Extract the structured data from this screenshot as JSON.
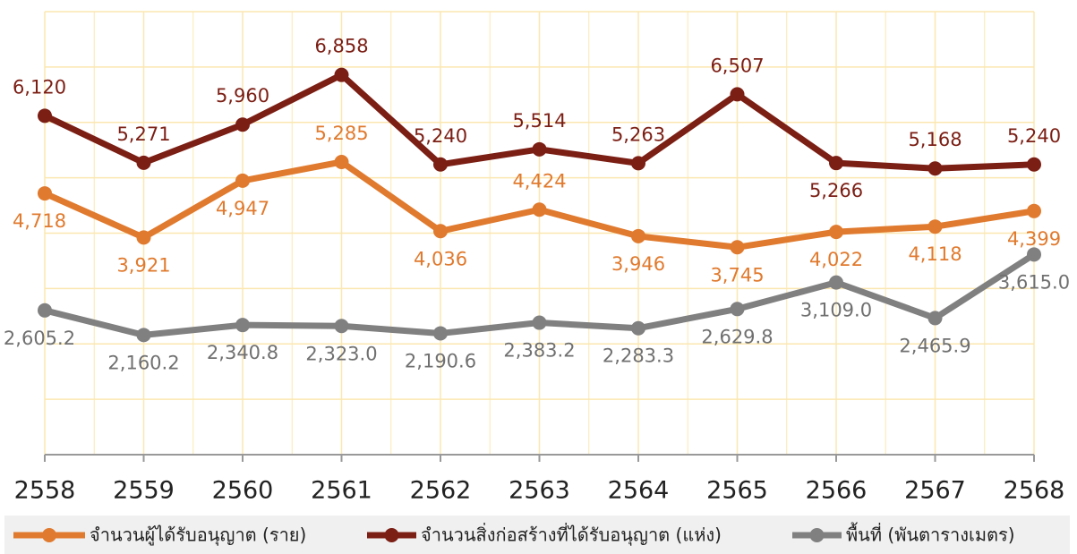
{
  "chart_data": {
    "type": "line",
    "categories": [
      "2558",
      "2559",
      "2560",
      "2561",
      "2562",
      "2563",
      "2564",
      "2565",
      "2566",
      "2567",
      "2568"
    ],
    "series": [
      {
        "name": "จำนวนผู้ได้รับอนุญาต (ราย)",
        "color": "#e07a2e",
        "values": [
          4718,
          3921,
          4947,
          5285,
          4036,
          4424,
          3946,
          3745,
          4022,
          4118,
          4399
        ],
        "value_labels": [
          "4,718",
          "3,921",
          "4,947",
          "5,285",
          "4,036",
          "4,424",
          "3,946",
          "3,745",
          "4,022",
          "4,118",
          "4,399"
        ]
      },
      {
        "name": "จำนวนสิ่งก่อสร้างที่ได้รับอนุญาต (แห่ง)",
        "color": "#7b1e14",
        "values": [
          6120,
          5271,
          5960,
          6858,
          5240,
          5514,
          5263,
          6507,
          5266,
          5168,
          5240
        ],
        "value_labels": [
          "6,120",
          "5,271",
          "5,960",
          "6,858",
          "5,240",
          "5,514",
          "5,263",
          "6,507",
          "5,266",
          "5,168",
          "5,240"
        ]
      },
      {
        "name": "พื้นที่ (พันตารางเมตร)",
        "color": "#808080",
        "values": [
          2605.2,
          2160.2,
          2340.8,
          2323.0,
          2190.6,
          2383.2,
          2283.3,
          2629.8,
          3109.0,
          2465.9,
          3615.0
        ],
        "value_labels": [
          "2,605.2",
          "2,160.2",
          "2,340.8",
          "2,323.0",
          "2,190.6",
          "2,383.2",
          "2,283.3",
          "2,629.8",
          "3,109.0",
          "2,465.9",
          "3,615.0"
        ]
      }
    ],
    "ylim": [
      0,
      8000
    ],
    "yticks": [
      1000,
      2000,
      3000,
      4000,
      5000,
      6000,
      7000,
      8000
    ],
    "grid": true,
    "legend": "bottom"
  }
}
